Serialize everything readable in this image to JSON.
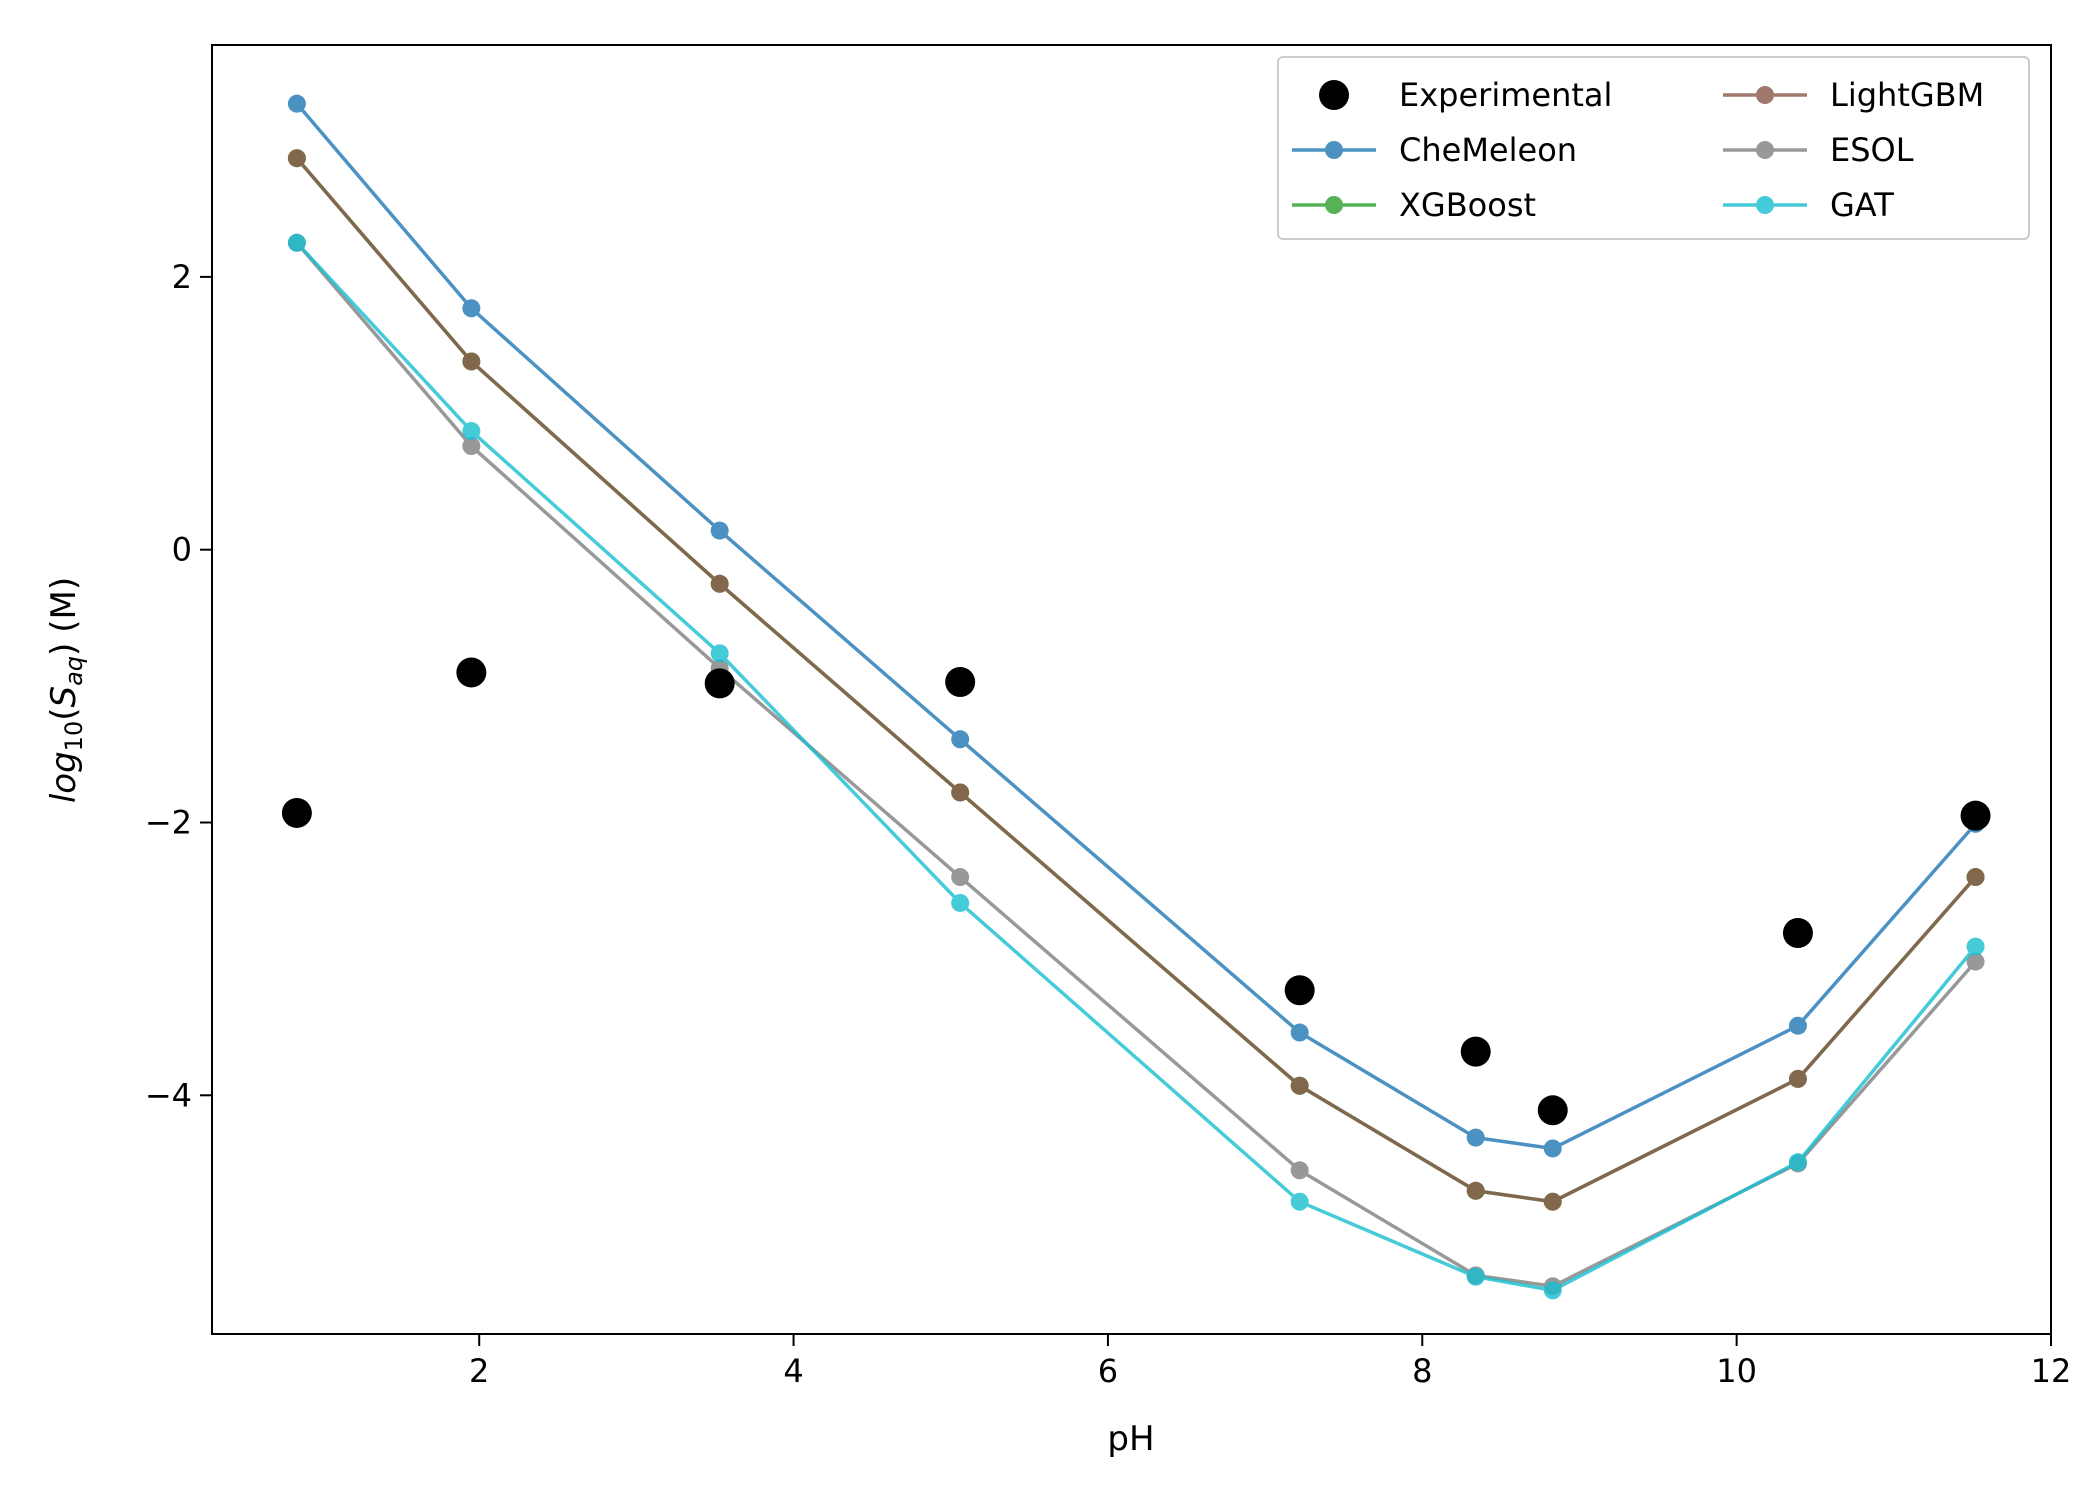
{
  "chart_data": {
    "type": "line",
    "title": "",
    "xlabel": "pH",
    "ylabel": {
      "base": "log",
      "sub1": "10",
      "open": "(",
      "var": "S",
      "sub2": "aq",
      "close": ")",
      "unit": "(M)"
    },
    "xlim": [
      0.3,
      12.0
    ],
    "ylim": [
      -5.75,
      3.7
    ],
    "xticks": [
      2,
      4,
      6,
      8,
      10,
      12
    ],
    "yticks": [
      2,
      0,
      -2,
      -4
    ],
    "ytick_labels": [
      "2",
      "0",
      "−2",
      "−4"
    ],
    "grid": false,
    "legend_position": "top-right",
    "x": [
      0.84,
      1.95,
      3.53,
      5.06,
      7.22,
      8.34,
      8.83,
      10.39,
      11.52
    ],
    "experimental": {
      "name": "Experimental",
      "color": "#000000",
      "values": [
        -1.93,
        -0.9,
        -0.98,
        -0.97,
        -3.23,
        -3.68,
        -4.11,
        -2.81,
        -1.95
      ]
    },
    "series": [
      {
        "name": "CheMeleon",
        "color": "#1f77b4",
        "values": [
          3.27,
          1.77,
          0.14,
          -1.39,
          -3.54,
          -4.31,
          -4.39,
          -3.49,
          -2.01
        ]
      },
      {
        "name": "XGBoost",
        "color": "#2ca02c",
        "values": [
          2.87,
          1.38,
          -0.25,
          -1.78,
          -3.93,
          -4.7,
          -4.78,
          -3.88,
          -2.4
        ]
      },
      {
        "name": "LightGBM",
        "color": "#8c564b",
        "values": [
          2.87,
          1.38,
          -0.25,
          -1.78,
          -3.93,
          -4.7,
          -4.78,
          -3.88,
          -2.4
        ]
      },
      {
        "name": "ESOL",
        "color": "#7f7f7f",
        "values": [
          2.25,
          0.76,
          -0.87,
          -2.4,
          -4.55,
          -5.32,
          -5.4,
          -4.5,
          -3.02
        ]
      },
      {
        "name": "GAT",
        "color": "#17becf",
        "values": [
          2.25,
          0.87,
          -0.76,
          -2.59,
          -4.78,
          -5.33,
          -5.43,
          -4.49,
          -2.91
        ]
      }
    ],
    "legend": {
      "columns": [
        [
          "Experimental",
          "CheMeleon",
          "XGBoost"
        ],
        [
          "LightGBM",
          "ESOL",
          "GAT"
        ]
      ]
    }
  }
}
